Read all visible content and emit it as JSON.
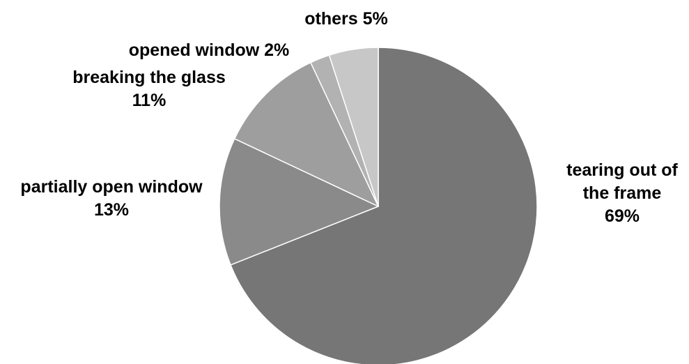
{
  "chart_data": {
    "type": "pie",
    "title": "",
    "start": "12 o'clock, clockwise",
    "slices": [
      {
        "label": "tearing out of the frame",
        "lines": [
          "tearing out of",
          "the frame"
        ],
        "value": 69,
        "value_label": "69%",
        "color": "#767676"
      },
      {
        "label": "partially open window",
        "lines": [
          "partially open window"
        ],
        "value": 13,
        "value_label": "13%",
        "color": "#8a8a8a"
      },
      {
        "label": "breaking the glass",
        "lines": [
          "breaking the glass"
        ],
        "value": 11,
        "value_label": "11%",
        "color": "#9e9e9e"
      },
      {
        "label": "opened window",
        "lines": [
          "opened window 2%"
        ],
        "value": 2,
        "value_label": "",
        "color": "#b2b2b2"
      },
      {
        "label": "others",
        "lines": [
          "others 5%"
        ],
        "value": 5,
        "value_label": "",
        "color": "#c7c7c7"
      }
    ]
  }
}
